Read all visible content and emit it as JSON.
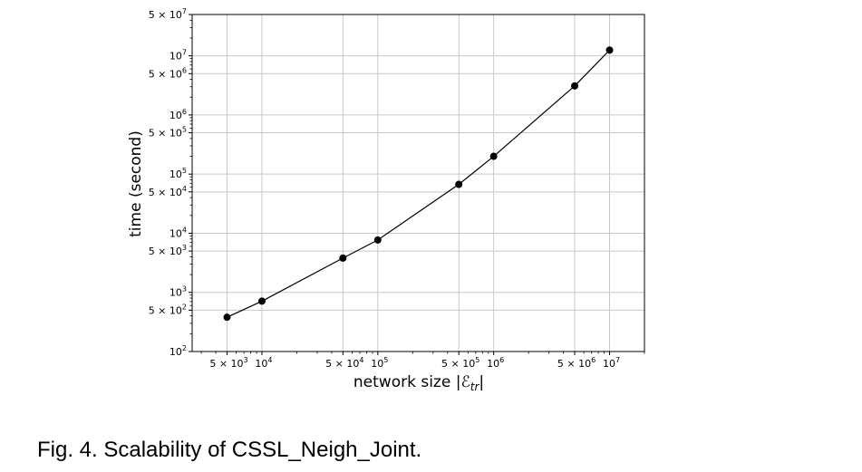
{
  "caption": "Fig. 4. Scalability of CSSL_Neigh_Joint.",
  "chart_data": {
    "type": "line",
    "xlabel": "network size |ℰ_tr|",
    "ylabel": "time (second)",
    "xscale": "log",
    "yscale": "log",
    "xlim": [
      2500,
      20000000
    ],
    "ylim": [
      100,
      50000000
    ],
    "grid": true,
    "series": [
      {
        "x": [
          5000,
          10000,
          50000,
          100000,
          500000,
          1000000,
          5000000,
          10000000
        ],
        "y": [
          380,
          710,
          3800,
          7700,
          67000,
          200000,
          3100000,
          12500000
        ]
      }
    ],
    "x_ticks": [
      {
        "value": 5000,
        "mant": "5 × 10",
        "exp": "3"
      },
      {
        "value": 10000,
        "mant": "10",
        "exp": "4"
      },
      {
        "value": 50000,
        "mant": "5 × 10",
        "exp": "4"
      },
      {
        "value": 100000,
        "mant": "10",
        "exp": "5"
      },
      {
        "value": 500000,
        "mant": "5 × 10",
        "exp": "5"
      },
      {
        "value": 1000000,
        "mant": "10",
        "exp": "6"
      },
      {
        "value": 5000000,
        "mant": "5 × 10",
        "exp": "6"
      },
      {
        "value": 10000000,
        "mant": "10",
        "exp": "7"
      }
    ],
    "y_ticks": [
      {
        "value": 100,
        "mant": "10",
        "exp": "2"
      },
      {
        "value": 500,
        "mant": "5 × 10",
        "exp": "2"
      },
      {
        "value": 1000,
        "mant": "10",
        "exp": "3"
      },
      {
        "value": 5000,
        "mant": "5 × 10",
        "exp": "3"
      },
      {
        "value": 10000,
        "mant": "10",
        "exp": "4"
      },
      {
        "value": 50000,
        "mant": "5 × 10",
        "exp": "4"
      },
      {
        "value": 100000,
        "mant": "10",
        "exp": "5"
      },
      {
        "value": 500000,
        "mant": "5 × 10",
        "exp": "5"
      },
      {
        "value": 1000000,
        "mant": "10",
        "exp": "6"
      },
      {
        "value": 5000000,
        "mant": "5 × 10",
        "exp": "6"
      },
      {
        "value": 10000000,
        "mant": "10",
        "exp": "7"
      },
      {
        "value": 50000000,
        "mant": "5 × 10",
        "exp": "7"
      }
    ]
  }
}
